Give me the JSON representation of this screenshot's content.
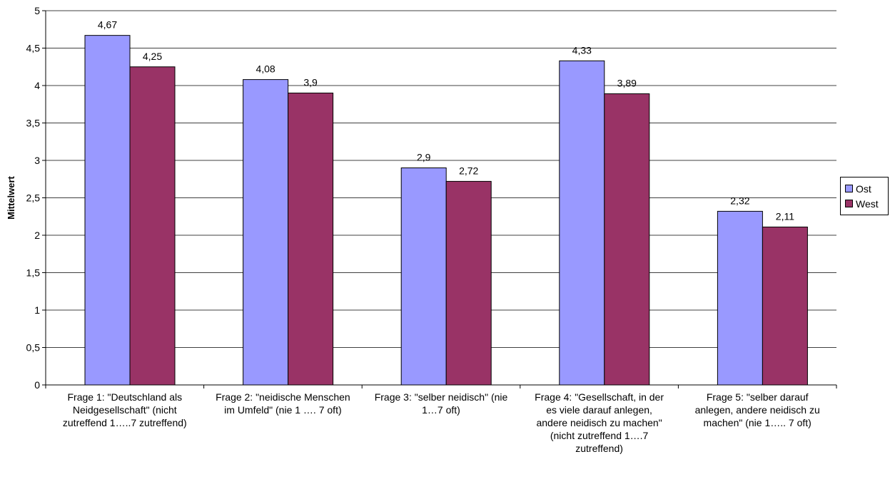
{
  "chart_data": {
    "type": "bar",
    "categories": [
      "Frage 1: \"Deutschland als Neidgesellschaft\" (nicht zutreffend 1…..7 zutreffend)",
      "Frage 2: \"neidische Menschen im Umfeld\" (nie 1 …. 7 oft)",
      "Frage 3: \"selber neidisch\" (nie 1…7 oft)",
      "Frage 4: \"Gesellschaft, in der es viele darauf anlegen, andere neidisch zu machen\" (nicht zutreffend 1….7 zutreffend)",
      "Frage 5: \"selber darauf anlegen, andere neidisch zu machen\" (nie 1….. 7 oft)"
    ],
    "series": [
      {
        "name": "Ost",
        "color": "#9999ff",
        "values": [
          4.67,
          4.08,
          2.9,
          4.33,
          2.32
        ],
        "labels": [
          "4,67",
          "4,08",
          "2,9",
          "4,33",
          "2,32"
        ]
      },
      {
        "name": "West",
        "color": "#993366",
        "values": [
          4.25,
          3.9,
          2.72,
          3.89,
          2.11
        ],
        "labels": [
          "4,25",
          "3,9",
          "2,72",
          "3,89",
          "2,11"
        ]
      }
    ],
    "ylabel": "Mittelwert",
    "xlabel": "",
    "ylim": [
      0,
      5
    ],
    "yticks": [
      0,
      0.5,
      1,
      1.5,
      2,
      2.5,
      3,
      3.5,
      4,
      4.5,
      5
    ],
    "ytick_labels": [
      "0",
      "0,5",
      "1",
      "1,5",
      "2",
      "2,5",
      "3",
      "3,5",
      "4",
      "4,5",
      "5"
    ],
    "grid": true,
    "legend_position": "right"
  }
}
